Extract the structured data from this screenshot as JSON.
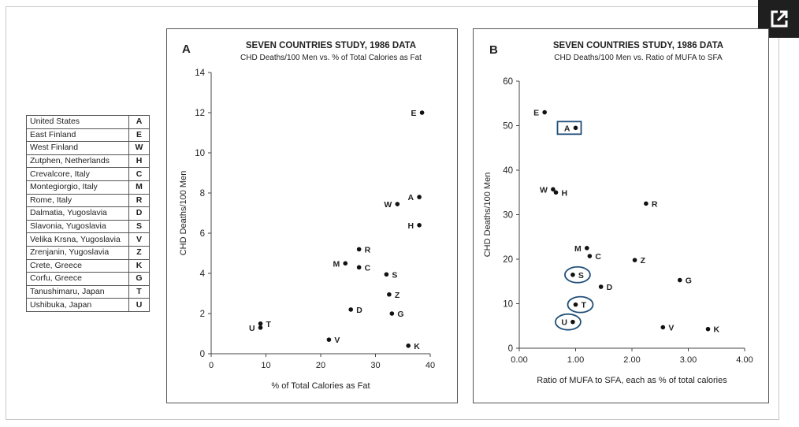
{
  "legend": [
    {
      "country": "United States",
      "code": "A"
    },
    {
      "country": "East Finland",
      "code": "E"
    },
    {
      "country": "West Finland",
      "code": "W"
    },
    {
      "country": "Zutphen, Netherlands",
      "code": "H"
    },
    {
      "country": "Crevalcore, Italy",
      "code": "C"
    },
    {
      "country": "Montegiorgio, Italy",
      "code": "M"
    },
    {
      "country": "Rome, Italy",
      "code": "R"
    },
    {
      "country": "Dalmatia, Yugoslavia",
      "code": "D"
    },
    {
      "country": "Slavonia, Yugoslavia",
      "code": "S"
    },
    {
      "country": "Velika Krsna, Yugoslavia",
      "code": "V"
    },
    {
      "country": "Zrenjanin, Yugoslavia",
      "code": "Z"
    },
    {
      "country": "Crete, Greece",
      "code": "K"
    },
    {
      "country": "Corfu, Greece",
      "code": "G"
    },
    {
      "country": "Tanushimaru, Japan",
      "code": "T"
    },
    {
      "country": "Ushibuka, Japan",
      "code": "U"
    }
  ],
  "colors": {
    "highlight": "#1f4e79",
    "point": "#111111",
    "axis": "#444444",
    "button_bg": "#1f1f1f"
  },
  "expand_button": {
    "icon": "external-link-icon"
  },
  "chart_data": [
    {
      "type": "scatter",
      "panel_letter": "A",
      "title": "SEVEN COUNTRIES STUDY, 1986 DATA",
      "subtitle": "CHD Deaths/100 Men vs. % of Total Calories as Fat",
      "xlabel": "% of Total Calories as Fat",
      "ylabel": "CHD Deaths/100 Men",
      "xlim": [
        0,
        40
      ],
      "ylim": [
        0,
        14
      ],
      "xticks": [
        0,
        10,
        20,
        30,
        40
      ],
      "xtick_labels": [
        "0",
        "10",
        "20",
        "30",
        "40"
      ],
      "yticks": [
        0,
        2,
        4,
        6,
        8,
        10,
        12,
        14
      ],
      "ytick_labels": [
        "0",
        "2",
        "4",
        "6",
        "8",
        "10",
        "12",
        "14"
      ],
      "grid": false,
      "points": [
        {
          "label": "E",
          "x": 38.5,
          "y": 12.0,
          "side": "left"
        },
        {
          "label": "A",
          "x": 38.0,
          "y": 7.8,
          "side": "left"
        },
        {
          "label": "W",
          "x": 34.0,
          "y": 7.45,
          "side": "left"
        },
        {
          "label": "H",
          "x": 38.0,
          "y": 6.4,
          "side": "left"
        },
        {
          "label": "R",
          "x": 27.0,
          "y": 5.2,
          "side": "right"
        },
        {
          "label": "M",
          "x": 24.5,
          "y": 4.5,
          "side": "left"
        },
        {
          "label": "C",
          "x": 27.0,
          "y": 4.3,
          "side": "right"
        },
        {
          "label": "S",
          "x": 32.0,
          "y": 3.95,
          "side": "right"
        },
        {
          "label": "Z",
          "x": 32.5,
          "y": 2.95,
          "side": "right"
        },
        {
          "label": "D",
          "x": 25.5,
          "y": 2.2,
          "side": "right"
        },
        {
          "label": "G",
          "x": 33.0,
          "y": 2.0,
          "side": "right"
        },
        {
          "label": "U",
          "x": 9.0,
          "y": 1.3,
          "side": "left"
        },
        {
          "label": "T",
          "x": 9.0,
          "y": 1.5,
          "side": "right"
        },
        {
          "label": "V",
          "x": 21.5,
          "y": 0.7,
          "side": "right"
        },
        {
          "label": "K",
          "x": 36.0,
          "y": 0.4,
          "side": "right"
        }
      ]
    },
    {
      "type": "scatter",
      "panel_letter": "B",
      "title": "SEVEN COUNTRIES STUDY, 1986 DATA",
      "subtitle": "CHD Deaths/100 Men vs. Ratio of MUFA to SFA",
      "xlabel": "Ratio of MUFA to SFA, each as % of total calories",
      "ylabel": "CHD Deaths/100 Men",
      "xlim": [
        0,
        4
      ],
      "ylim": [
        0,
        60
      ],
      "xticks": [
        0,
        1,
        2,
        3,
        4
      ],
      "xtick_labels": [
        "0.00",
        "1.00",
        "2.00",
        "3.00",
        "4.00"
      ],
      "yticks": [
        0,
        10,
        20,
        30,
        40,
        50,
        60
      ],
      "ytick_labels": [
        "0",
        "10",
        "20",
        "30",
        "40",
        "50",
        "60"
      ],
      "grid": false,
      "points": [
        {
          "label": "E",
          "x": 0.45,
          "y": 53.0,
          "side": "left"
        },
        {
          "label": "A",
          "x": 1.0,
          "y": 49.5,
          "side": "left",
          "highlight": "box"
        },
        {
          "label": "W",
          "x": 0.6,
          "y": 35.7,
          "side": "left"
        },
        {
          "label": "H",
          "x": 0.65,
          "y": 35.0,
          "side": "right"
        },
        {
          "label": "R",
          "x": 2.25,
          "y": 32.5,
          "side": "right"
        },
        {
          "label": "M",
          "x": 1.2,
          "y": 22.5,
          "side": "left"
        },
        {
          "label": "C",
          "x": 1.25,
          "y": 20.7,
          "side": "right"
        },
        {
          "label": "Z",
          "x": 2.05,
          "y": 19.8,
          "side": "right"
        },
        {
          "label": "S",
          "x": 0.95,
          "y": 16.5,
          "side": "right",
          "highlight": "ellipse"
        },
        {
          "label": "G",
          "x": 2.85,
          "y": 15.3,
          "side": "right"
        },
        {
          "label": "D",
          "x": 1.45,
          "y": 13.8,
          "side": "right"
        },
        {
          "label": "T",
          "x": 1.0,
          "y": 9.8,
          "side": "right",
          "highlight": "ellipse"
        },
        {
          "label": "U",
          "x": 0.95,
          "y": 5.9,
          "side": "left",
          "highlight": "ellipse"
        },
        {
          "label": "V",
          "x": 2.55,
          "y": 4.7,
          "side": "right"
        },
        {
          "label": "K",
          "x": 3.35,
          "y": 4.3,
          "side": "right"
        }
      ]
    }
  ]
}
